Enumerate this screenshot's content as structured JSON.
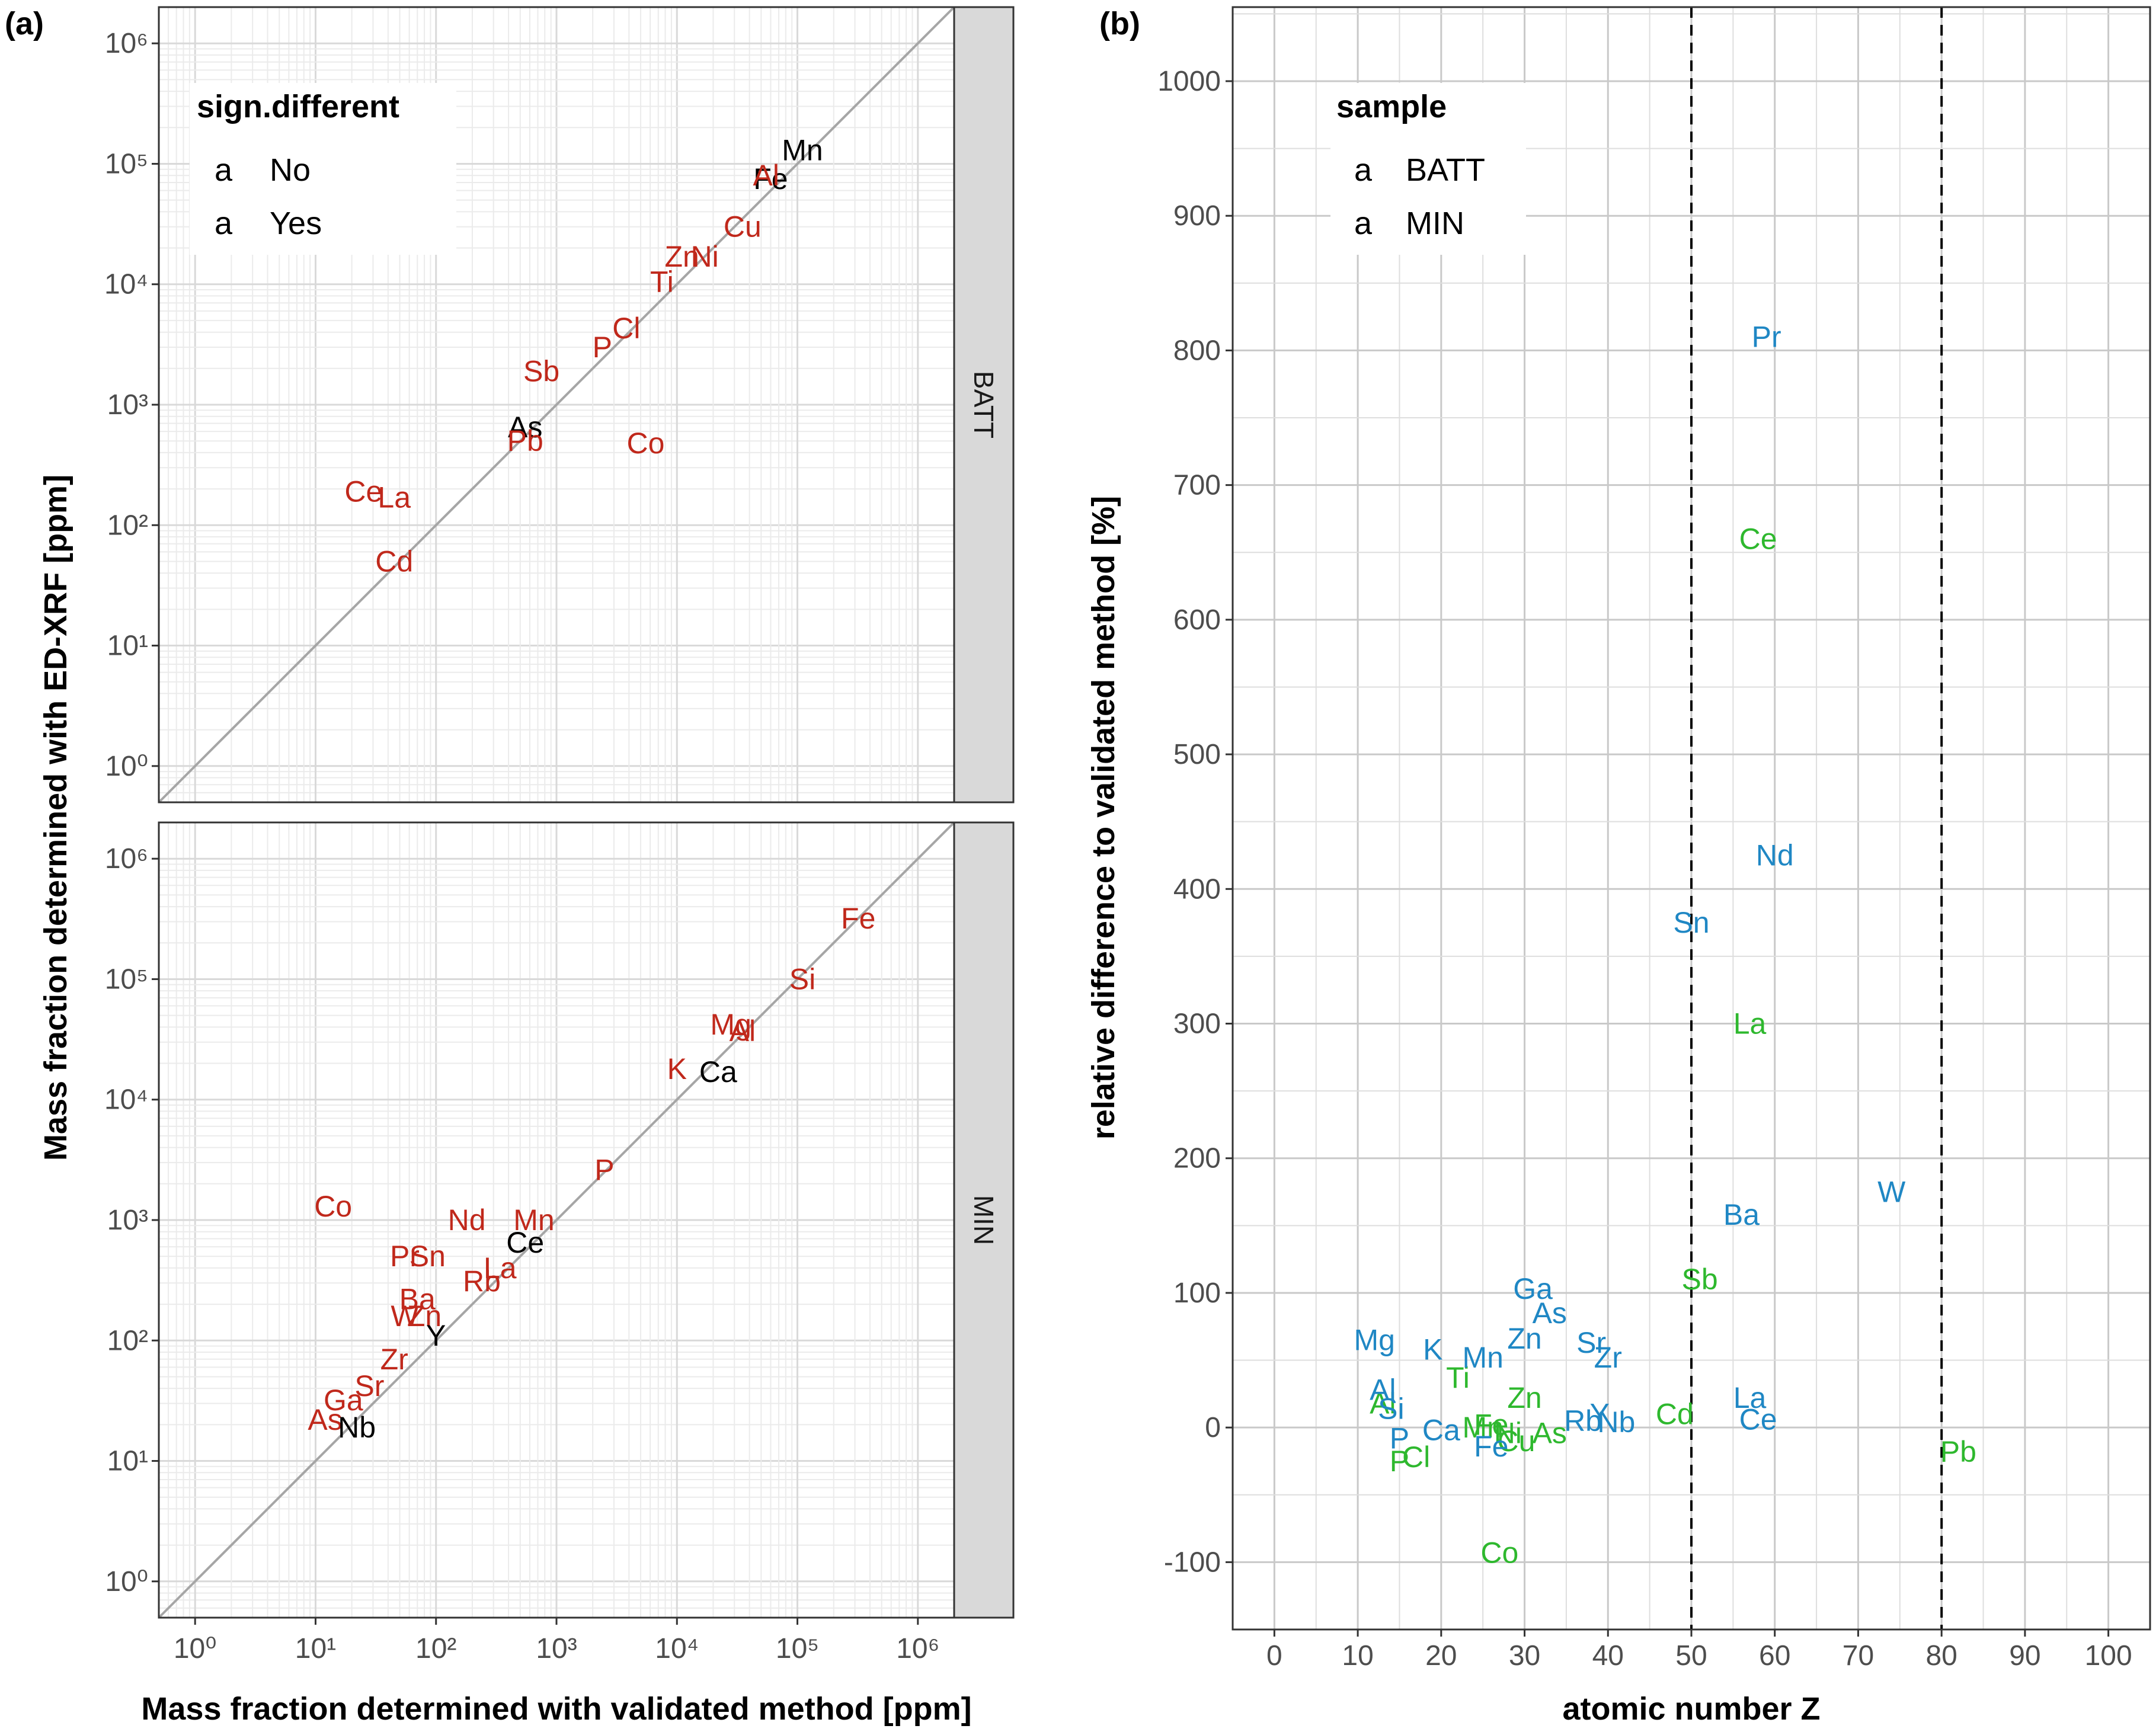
{
  "panel_tags": {
    "a": "(a)",
    "b": "(b)"
  },
  "colors": {
    "no": "#000000",
    "yes": "#c0281b",
    "batt": "#2eb82e",
    "min": "#1f87c4",
    "grid_minor": "#ebebeb",
    "grid_major": "#d9d9d9",
    "strip": "#d9d9d9"
  },
  "legend_a": {
    "title": "sign.different",
    "key_glyph": "a",
    "entries": [
      {
        "label": "No",
        "color": "#000000"
      },
      {
        "label": "Yes",
        "color": "#c0281b"
      }
    ]
  },
  "legend_b": {
    "title": "sample",
    "key_glyph": "a",
    "entries": [
      {
        "label": "BATT",
        "color": "#2eb82e"
      },
      {
        "label": "MIN",
        "color": "#1f87c4"
      }
    ]
  },
  "chart_data": [
    {
      "type": "scatter",
      "facets": [
        "BATT",
        "MIN"
      ],
      "xlabel": "Mass fraction determined with validated method [ppm]",
      "ylabel": "Mass fraction determined with ED-XRF [ppm]",
      "xscale": "log10",
      "yscale": "log10",
      "xlim": [
        0.5,
        2000000
      ],
      "ylim": [
        0.5,
        2000000
      ],
      "x_ticks": [
        "10^0",
        "10^1",
        "10^2",
        "10^3",
        "10^4",
        "10^5",
        "10^6"
      ],
      "y_ticks": [
        "10^0",
        "10^1",
        "10^2",
        "10^3",
        "10^4",
        "10^5",
        "10^6"
      ],
      "reference_line": "y = x",
      "series": [
        {
          "facet": "BATT",
          "points": [
            {
              "label": "Mn",
              "x": 110000,
              "y": 130000,
              "sig": "No"
            },
            {
              "label": "Fe",
              "x": 60000,
              "y": 75000,
              "sig": "No"
            },
            {
              "label": "Al",
              "x": 55000,
              "y": 80000,
              "sig": "Yes"
            },
            {
              "label": "Cu",
              "x": 35000,
              "y": 30000,
              "sig": "Yes"
            },
            {
              "label": "Zn",
              "x": 11000,
              "y": 17000,
              "sig": "Yes"
            },
            {
              "label": "Ni",
              "x": 17000,
              "y": 17000,
              "sig": "Yes"
            },
            {
              "label": "Ti",
              "x": 7500,
              "y": 10500,
              "sig": "Yes"
            },
            {
              "label": "Cl",
              "x": 3800,
              "y": 4300,
              "sig": "Yes"
            },
            {
              "label": "P",
              "x": 2400,
              "y": 3000,
              "sig": "Yes"
            },
            {
              "label": "Sb",
              "x": 750,
              "y": 1900,
              "sig": "Yes"
            },
            {
              "label": "As",
              "x": 550,
              "y": 650,
              "sig": "No"
            },
            {
              "label": "Pb",
              "x": 550,
              "y": 500,
              "sig": "Yes"
            },
            {
              "label": "Co",
              "x": 5500,
              "y": 480,
              "sig": "Yes"
            },
            {
              "label": "Ce",
              "x": 25,
              "y": 190,
              "sig": "Yes"
            },
            {
              "label": "La",
              "x": 45,
              "y": 170,
              "sig": "Yes"
            },
            {
              "label": "Cd",
              "x": 45,
              "y": 50,
              "sig": "Yes"
            }
          ]
        },
        {
          "facet": "MIN",
          "points": [
            {
              "label": "Fe",
              "x": 320000,
              "y": 320000,
              "sig": "Yes"
            },
            {
              "label": "Si",
              "x": 110000,
              "y": 100000,
              "sig": "Yes"
            },
            {
              "label": "Mg",
              "x": 28000,
              "y": 42000,
              "sig": "Yes"
            },
            {
              "label": "Al",
              "x": 35000,
              "y": 37000,
              "sig": "Yes"
            },
            {
              "label": "K",
              "x": 10000,
              "y": 18000,
              "sig": "Yes"
            },
            {
              "label": "Ca",
              "x": 22000,
              "y": 17000,
              "sig": "No"
            },
            {
              "label": "P",
              "x": 2500,
              "y": 2600,
              "sig": "Yes"
            },
            {
              "label": "Co",
              "x": 14,
              "y": 1300,
              "sig": "Yes"
            },
            {
              "label": "Nd",
              "x": 180,
              "y": 1000,
              "sig": "Yes"
            },
            {
              "label": "Mn",
              "x": 650,
              "y": 1000,
              "sig": "Yes"
            },
            {
              "label": "Ce",
              "x": 550,
              "y": 650,
              "sig": "No"
            },
            {
              "label": "Pr",
              "x": 55,
              "y": 500,
              "sig": "Yes"
            },
            {
              "label": "Sn",
              "x": 85,
              "y": 500,
              "sig": "Yes"
            },
            {
              "label": "La",
              "x": 340,
              "y": 400,
              "sig": "Yes"
            },
            {
              "label": "Rb",
              "x": 240,
              "y": 310,
              "sig": "Yes"
            },
            {
              "label": "Ba",
              "x": 70,
              "y": 220,
              "sig": "Yes"
            },
            {
              "label": "W",
              "x": 55,
              "y": 160,
              "sig": "Yes"
            },
            {
              "label": "Zn",
              "x": 80,
              "y": 160,
              "sig": "Yes"
            },
            {
              "label": "Y",
              "x": 100,
              "y": 110,
              "sig": "No"
            },
            {
              "label": "Zr",
              "x": 45,
              "y": 70,
              "sig": "Yes"
            },
            {
              "label": "Sr",
              "x": 28,
              "y": 42,
              "sig": "Yes"
            },
            {
              "label": "Ga",
              "x": 17,
              "y": 32,
              "sig": "Yes"
            },
            {
              "label": "As",
              "x": 12,
              "y": 22,
              "sig": "Yes"
            },
            {
              "label": "Nb",
              "x": 22,
              "y": 19,
              "sig": "No"
            }
          ]
        }
      ]
    },
    {
      "type": "scatter",
      "xlabel": "atomic number Z",
      "ylabel": "relative difference to validated method [%]",
      "xlim": [
        -5,
        105
      ],
      "ylim": [
        -150,
        1055
      ],
      "x_ticks": [
        0,
        10,
        20,
        30,
        40,
        50,
        60,
        70,
        80,
        90,
        100
      ],
      "y_ticks": [
        -100,
        0,
        100,
        200,
        300,
        400,
        500,
        600,
        700,
        800,
        900,
        1000
      ],
      "vlines": [
        50,
        80
      ],
      "series": [
        {
          "name": "BATT",
          "points": [
            {
              "label": "Ce",
              "x": 58,
              "y": 660
            },
            {
              "label": "La",
              "x": 57,
              "y": 300
            },
            {
              "label": "Sb",
              "x": 51,
              "y": 110
            },
            {
              "label": "Ti",
              "x": 22,
              "y": 37
            },
            {
              "label": "Zn",
              "x": 30,
              "y": 22
            },
            {
              "label": "Al",
              "x": 13,
              "y": 18
            },
            {
              "label": "Cd",
              "x": 48,
              "y": 10
            },
            {
              "label": "Mn",
              "x": 25,
              "y": 0
            },
            {
              "label": "Fe",
              "x": 26,
              "y": 2
            },
            {
              "label": "Ni",
              "x": 28,
              "y": -4
            },
            {
              "label": "Cu",
              "x": 29,
              "y": -10
            },
            {
              "label": "As",
              "x": 33,
              "y": -4
            },
            {
              "label": "P",
              "x": 15,
              "y": -25
            },
            {
              "label": "Cl",
              "x": 17,
              "y": -22
            },
            {
              "label": "Pb",
              "x": 82,
              "y": -18
            },
            {
              "label": "Co",
              "x": 27,
              "y": -93
            }
          ]
        },
        {
          "name": "MIN",
          "points": [
            {
              "label": "Pr",
              "x": 59,
              "y": 810
            },
            {
              "label": "Nd",
              "x": 60,
              "y": 425
            },
            {
              "label": "Sn",
              "x": 50,
              "y": 375
            },
            {
              "label": "W",
              "x": 74,
              "y": 175
            },
            {
              "label": "Ba",
              "x": 56,
              "y": 158
            },
            {
              "label": "Ga",
              "x": 31,
              "y": 103
            },
            {
              "label": "As",
              "x": 33,
              "y": 85
            },
            {
              "label": "Mg",
              "x": 12,
              "y": 65
            },
            {
              "label": "K",
              "x": 19,
              "y": 58
            },
            {
              "label": "Zn",
              "x": 30,
              "y": 66
            },
            {
              "label": "Mn",
              "x": 25,
              "y": 52
            },
            {
              "label": "Sr",
              "x": 38,
              "y": 63
            },
            {
              "label": "Zr",
              "x": 40,
              "y": 52
            },
            {
              "label": "Al",
              "x": 13,
              "y": 28
            },
            {
              "label": "Si",
              "x": 14,
              "y": 14
            },
            {
              "label": "La",
              "x": 57,
              "y": 22
            },
            {
              "label": "Y",
              "x": 39,
              "y": 10
            },
            {
              "label": "Rb",
              "x": 37,
              "y": 5
            },
            {
              "label": "Nb",
              "x": 41,
              "y": 4
            },
            {
              "label": "Ce",
              "x": 58,
              "y": 6
            },
            {
              "label": "Ca",
              "x": 20,
              "y": -2
            },
            {
              "label": "P",
              "x": 15,
              "y": -8
            },
            {
              "label": "Fe",
              "x": 26,
              "y": -14
            }
          ]
        }
      ]
    }
  ]
}
